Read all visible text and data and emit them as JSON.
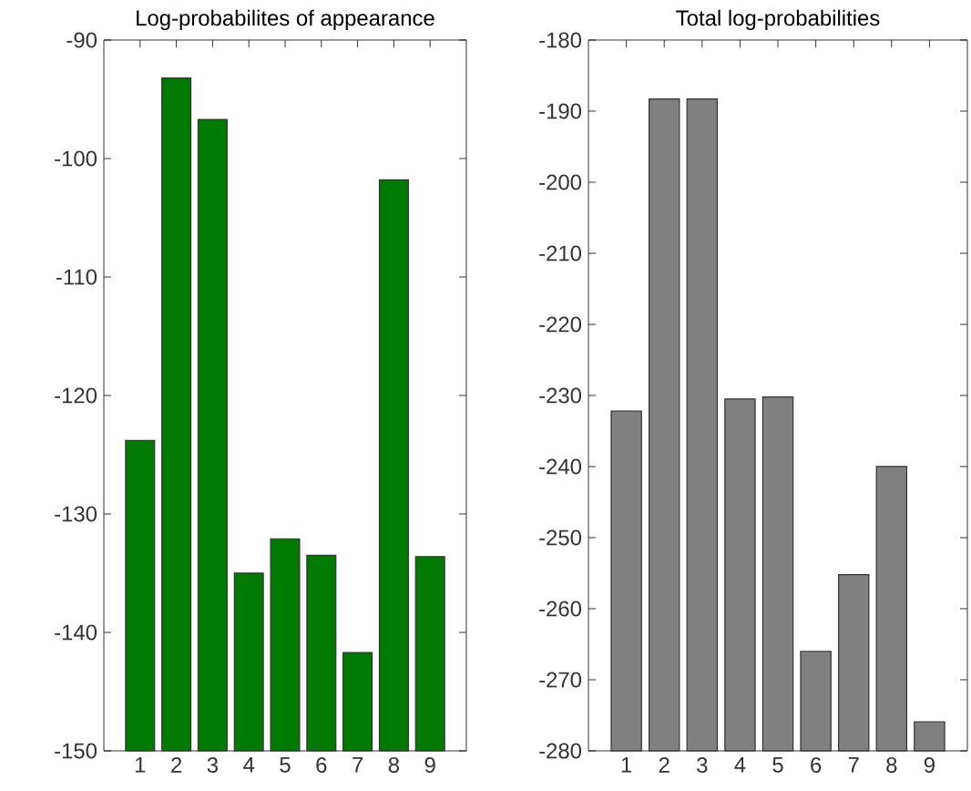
{
  "chart_data": [
    {
      "type": "bar",
      "title": "Log-probabilites of appearance",
      "categories": [
        "1",
        "2",
        "3",
        "4",
        "5",
        "6",
        "7",
        "8",
        "9"
      ],
      "base": [
        -150,
        -150,
        -150,
        -150,
        -150,
        -150,
        -150,
        -150,
        -150
      ],
      "values": [
        26.2,
        56.8,
        53.3,
        15,
        17.9,
        16.5,
        8.3,
        48.2,
        16.4
      ],
      "color": "#007a00",
      "ylim": [
        -150,
        -90
      ],
      "yticks": [
        -150,
        -140,
        -130,
        -120,
        -110,
        -100,
        -90
      ]
    },
    {
      "type": "bar",
      "title": "Total log-probabilities",
      "categories": [
        "1",
        "2",
        "3",
        "4",
        "5",
        "6",
        "7",
        "8",
        "9"
      ],
      "base": [
        -280,
        -280,
        -280,
        -280,
        -280,
        -280,
        -280,
        -280,
        -280
      ],
      "values": [
        47.8,
        91.7,
        91.7,
        49.5,
        49.8,
        14,
        24.8,
        40,
        4.1
      ],
      "color": "#808080",
      "ylim": [
        -280,
        -180
      ],
      "yticks": [
        -280,
        -270,
        -260,
        -250,
        -240,
        -230,
        -220,
        -210,
        -200,
        -190,
        -180
      ]
    }
  ]
}
